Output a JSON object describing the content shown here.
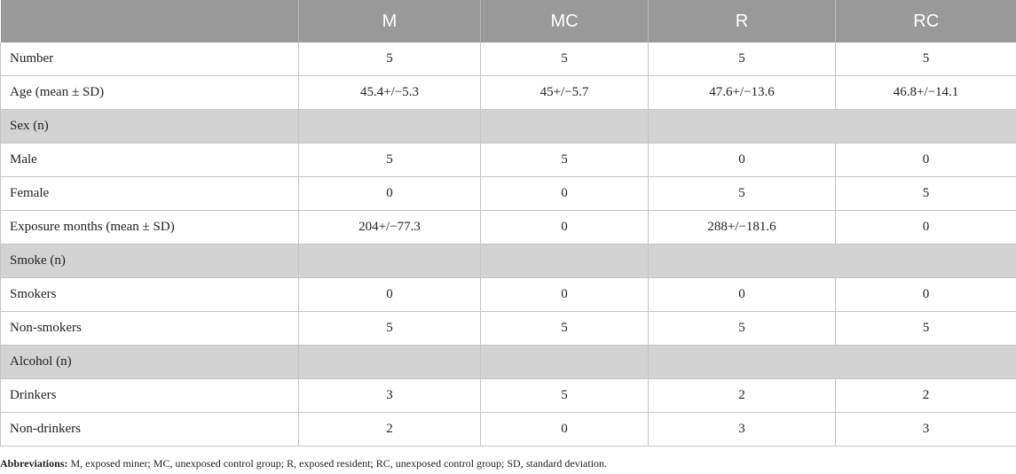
{
  "table": {
    "headers": [
      "",
      "M",
      "MC",
      "R",
      "RC"
    ],
    "rows": [
      {
        "type": "data",
        "cells": [
          "Number",
          "5",
          "5",
          "5",
          "5"
        ]
      },
      {
        "type": "data",
        "cells": [
          "Age (mean ± SD)",
          "45.4+/−5.3",
          "45+/−5.7",
          "47.6+/−13.6",
          "46.8+/−14.1"
        ]
      },
      {
        "type": "section",
        "cells": [
          "Sex (n)",
          "",
          "",
          ""
        ]
      },
      {
        "type": "data",
        "cells": [
          "Male",
          "5",
          "5",
          "0",
          "0"
        ]
      },
      {
        "type": "data",
        "cells": [
          "Female",
          "0",
          "0",
          "5",
          "5"
        ]
      },
      {
        "type": "data",
        "cells": [
          "Exposure months (mean ± SD)",
          "204+/−77.3",
          "0",
          "288+/−181.6",
          "0"
        ]
      },
      {
        "type": "section",
        "cells": [
          "Smoke (n)",
          "",
          "",
          ""
        ]
      },
      {
        "type": "data",
        "cells": [
          "Smokers",
          "0",
          "0",
          "0",
          "0"
        ]
      },
      {
        "type": "data",
        "cells": [
          "Non-smokers",
          "5",
          "5",
          "5",
          "5"
        ]
      },
      {
        "type": "section",
        "cells": [
          "Alcohol (n)",
          "",
          "",
          ""
        ]
      },
      {
        "type": "data",
        "cells": [
          "Drinkers",
          "3",
          "5",
          "2",
          "2"
        ]
      },
      {
        "type": "data",
        "cells": [
          "Non-drinkers",
          "2",
          "0",
          "3",
          "3"
        ]
      }
    ]
  },
  "footnote": {
    "label": "Abbreviations:",
    "text": " M, exposed miner; MC, unexposed control group; R, exposed resident; RC, unexposed control group; SD, standard deviation."
  },
  "colors": {
    "header_bg": "#999999",
    "section_bg": "#d3d3d3",
    "border": "#c4c4c4"
  }
}
